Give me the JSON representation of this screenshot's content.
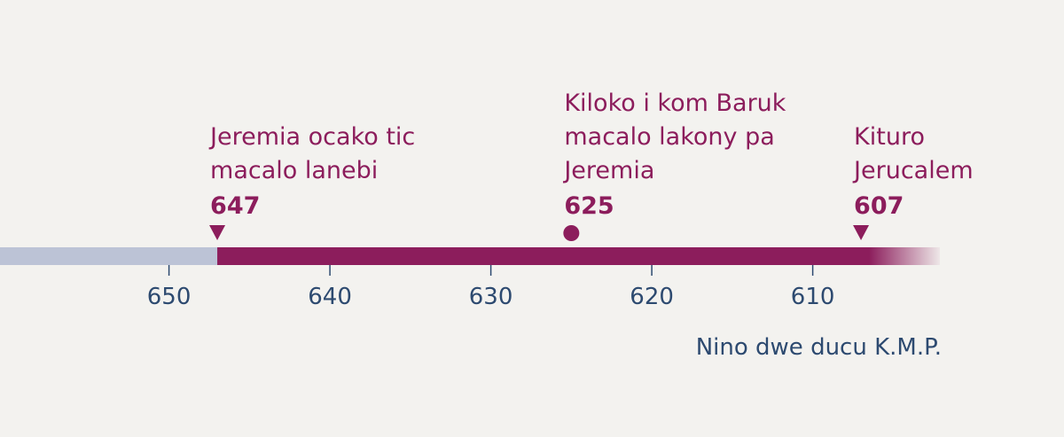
{
  "chart_data": {
    "type": "timeline",
    "xlim": [
      660.5,
      602.1
    ],
    "xticks": [
      650,
      640,
      630,
      620,
      610
    ],
    "x_label": "Nino dwe ducu K.M.P.",
    "color": "#8c1d5c",
    "before_color": "#bcc3d6",
    "events": [
      {
        "label": [
          "Jeremia ocako tic",
          "macalo lanebi"
        ],
        "x": 647,
        "marker": "triangle"
      },
      {
        "label": [
          "Kiloko i kom Baruk",
          "macalo lakony pa",
          "Jeremia"
        ],
        "x": 625,
        "marker": "circle"
      },
      {
        "label": [
          "Kituro",
          "Jerucalem"
        ],
        "x": 607,
        "marker": "triangle"
      }
    ]
  }
}
